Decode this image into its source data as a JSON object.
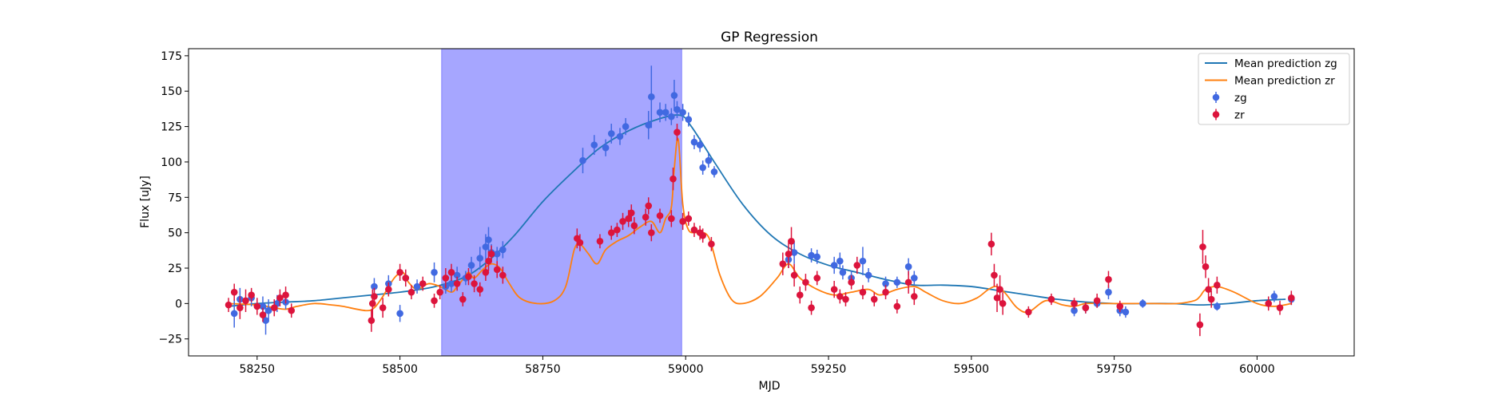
{
  "chart_data": {
    "type": "scatter",
    "title": "GP Regression",
    "xlabel": "MJD",
    "ylabel": "Flux [uJy]",
    "xlim": [
      58130,
      60170
    ],
    "ylim": [
      -37,
      180
    ],
    "xticks": [
      58250,
      58500,
      58750,
      59000,
      59250,
      59500,
      59750,
      60000
    ],
    "yticks": [
      -25,
      0,
      25,
      50,
      75,
      100,
      125,
      150,
      175
    ],
    "grid": false,
    "legend_position": "top-right",
    "shaded_region": {
      "x_start": 58573,
      "x_end": 58993,
      "color": "#a6a6ff"
    },
    "colors": {
      "zg_line": "#1f77b4",
      "zr_line": "#ff7f0e",
      "zg_points": "#4169e1",
      "zr_points": "#dc143c"
    },
    "lines": [
      {
        "name": "Mean prediction zg",
        "x": [
          58200,
          58250,
          58300,
          58350,
          58400,
          58450,
          58500,
          58550,
          58580,
          58620,
          58660,
          58700,
          58750,
          58800,
          58850,
          58900,
          58950,
          58990,
          59010,
          59050,
          59100,
          59150,
          59200,
          59250,
          59300,
          59350,
          59400,
          59450,
          59500,
          59550,
          59600,
          59650,
          59700,
          59750,
          59800,
          59850,
          59900,
          59950,
          60000,
          60050
        ],
        "y": [
          -2,
          0,
          1,
          2,
          4,
          6,
          8,
          11,
          14,
          20,
          32,
          48,
          72,
          92,
          110,
          122,
          130,
          133,
          125,
          100,
          70,
          48,
          35,
          27,
          22,
          17,
          13,
          13,
          12,
          9,
          6,
          3,
          1,
          0,
          0,
          0,
          -1,
          0,
          2,
          3
        ]
      },
      {
        "name": "Mean prediction zr",
        "x": [
          58200,
          58250,
          58280,
          58300,
          58320,
          58350,
          58380,
          58400,
          58440,
          58455,
          58470,
          58490,
          58505,
          58515,
          58530,
          58550,
          58570,
          58590,
          58600,
          58610,
          58620,
          58630,
          58645,
          58660,
          58675,
          58690,
          58710,
          58740,
          58770,
          58790,
          58805,
          58815,
          58830,
          58845,
          58860,
          58880,
          58900,
          58920,
          58940,
          58955,
          58965,
          58975,
          58980,
          58987,
          58995,
          59005,
          59020,
          59040,
          59060,
          59080,
          59100,
          59130,
          59160,
          59180,
          59200,
          59230,
          59260,
          59290,
          59320,
          59340,
          59370,
          59400,
          59420,
          59450,
          59480,
          59510,
          59530,
          59545,
          59560,
          59580,
          59600,
          59630,
          59660,
          59680,
          59700,
          59730,
          59760,
          59790,
          59820,
          59860,
          59890,
          59900,
          59910,
          59930,
          59960,
          60000,
          60030,
          60060
        ],
        "y": [
          0,
          -1,
          -3,
          -4,
          -2,
          0,
          -1,
          -2,
          -5,
          -3,
          5,
          18,
          22,
          15,
          10,
          14,
          12,
          8,
          12,
          17,
          22,
          18,
          24,
          28,
          25,
          15,
          4,
          0,
          2,
          12,
          38,
          42,
          35,
          28,
          38,
          44,
          48,
          54,
          58,
          50,
          60,
          68,
          95,
          116,
          70,
          52,
          50,
          47,
          20,
          3,
          0,
          5,
          18,
          28,
          18,
          10,
          6,
          8,
          10,
          6,
          10,
          12,
          8,
          2,
          0,
          4,
          10,
          12,
          7,
          -3,
          -6,
          2,
          -1,
          -2,
          0,
          0,
          0,
          0,
          0,
          0,
          2,
          5,
          10,
          12,
          8,
          0,
          -2,
          0
        ]
      }
    ],
    "series": [
      {
        "name": "zg",
        "points": [
          [
            58210,
            -7,
            10
          ],
          [
            58220,
            3,
            8
          ],
          [
            58240,
            4,
            6
          ],
          [
            58260,
            -2,
            7
          ],
          [
            58265,
            -12,
            10
          ],
          [
            58270,
            -5,
            8
          ],
          [
            58285,
            0,
            6
          ],
          [
            58300,
            1,
            5
          ],
          [
            58455,
            12,
            6
          ],
          [
            58480,
            14,
            6
          ],
          [
            58500,
            -7,
            6
          ],
          [
            58510,
            18,
            6
          ],
          [
            58530,
            12,
            5
          ],
          [
            58560,
            22,
            7
          ],
          [
            58580,
            12,
            5
          ],
          [
            58590,
            14,
            6
          ],
          [
            58600,
            20,
            6
          ],
          [
            58615,
            18,
            5
          ],
          [
            58625,
            27,
            6
          ],
          [
            58640,
            32,
            8
          ],
          [
            58650,
            40,
            9
          ],
          [
            58655,
            45,
            9
          ],
          [
            58660,
            36,
            6
          ],
          [
            58670,
            35,
            5
          ],
          [
            58680,
            38,
            6
          ],
          [
            58820,
            101,
            9
          ],
          [
            58840,
            112,
            7
          ],
          [
            58860,
            110,
            6
          ],
          [
            58870,
            120,
            7
          ],
          [
            58885,
            118,
            6
          ],
          [
            58895,
            125,
            6
          ],
          [
            58935,
            126,
            10
          ],
          [
            58940,
            146,
            22
          ],
          [
            58955,
            135,
            7
          ],
          [
            58965,
            135,
            6
          ],
          [
            58975,
            132,
            6
          ],
          [
            58980,
            147,
            11
          ],
          [
            58985,
            137,
            6
          ],
          [
            58995,
            135,
            6
          ],
          [
            59005,
            130,
            5
          ],
          [
            59015,
            114,
            5
          ],
          [
            59025,
            112,
            5
          ],
          [
            59030,
            96,
            5
          ],
          [
            59040,
            101,
            5
          ],
          [
            59050,
            93,
            4
          ],
          [
            59180,
            31,
            6
          ],
          [
            59190,
            36,
            8
          ],
          [
            59220,
            34,
            5
          ],
          [
            59230,
            33,
            5
          ],
          [
            59260,
            27,
            6
          ],
          [
            59270,
            30,
            6
          ],
          [
            59275,
            22,
            5
          ],
          [
            59290,
            18,
            5
          ],
          [
            59310,
            30,
            10
          ],
          [
            59320,
            20,
            5
          ],
          [
            59350,
            14,
            5
          ],
          [
            59370,
            15,
            4
          ],
          [
            59390,
            26,
            6
          ],
          [
            59400,
            18,
            5
          ],
          [
            59680,
            -5,
            4
          ],
          [
            59700,
            -3,
            4
          ],
          [
            59720,
            0,
            3
          ],
          [
            59740,
            8,
            5
          ],
          [
            59760,
            -5,
            4
          ],
          [
            59770,
            -6,
            4
          ],
          [
            59800,
            0,
            3
          ],
          [
            59930,
            -2,
            3
          ],
          [
            60030,
            5,
            4
          ],
          [
            60060,
            3,
            4
          ]
        ]
      },
      {
        "name": "zr",
        "points": [
          [
            58200,
            -1,
            5
          ],
          [
            58210,
            8,
            6
          ],
          [
            58220,
            -3,
            8
          ],
          [
            58230,
            2,
            8
          ],
          [
            58240,
            6,
            5
          ],
          [
            58250,
            -2,
            6
          ],
          [
            58260,
            -8,
            5
          ],
          [
            58280,
            -3,
            6
          ],
          [
            58290,
            4,
            6
          ],
          [
            58300,
            6,
            6
          ],
          [
            58310,
            -5,
            5
          ],
          [
            58450,
            -12,
            8
          ],
          [
            58452,
            0,
            10
          ],
          [
            58455,
            5,
            6
          ],
          [
            58470,
            -3,
            7
          ],
          [
            58480,
            10,
            5
          ],
          [
            58500,
            22,
            6
          ],
          [
            58510,
            18,
            6
          ],
          [
            58520,
            8,
            5
          ],
          [
            58540,
            14,
            5
          ],
          [
            58560,
            2,
            5
          ],
          [
            58570,
            8,
            5
          ],
          [
            58580,
            18,
            7
          ],
          [
            58590,
            22,
            6
          ],
          [
            58600,
            14,
            5
          ],
          [
            58610,
            3,
            5
          ],
          [
            58620,
            19,
            6
          ],
          [
            58630,
            14,
            6
          ],
          [
            58640,
            10,
            5
          ],
          [
            58650,
            22,
            6
          ],
          [
            58655,
            30,
            7
          ],
          [
            58660,
            35,
            6
          ],
          [
            58670,
            24,
            6
          ],
          [
            58680,
            20,
            6
          ],
          [
            58810,
            46,
            7
          ],
          [
            58815,
            43,
            6
          ],
          [
            58850,
            44,
            5
          ],
          [
            58870,
            50,
            5
          ],
          [
            58880,
            52,
            5
          ],
          [
            58890,
            58,
            6
          ],
          [
            58900,
            60,
            6
          ],
          [
            58905,
            64,
            6
          ],
          [
            58910,
            55,
            6
          ],
          [
            58930,
            61,
            6
          ],
          [
            58935,
            69,
            6
          ],
          [
            58940,
            50,
            6
          ],
          [
            58955,
            62,
            5
          ],
          [
            58975,
            60,
            6
          ],
          [
            58978,
            88,
            8
          ],
          [
            58985,
            121,
            6
          ],
          [
            58995,
            58,
            6
          ],
          [
            59005,
            60,
            5
          ],
          [
            59015,
            52,
            5
          ],
          [
            59025,
            50,
            5
          ],
          [
            59030,
            48,
            5
          ],
          [
            59045,
            42,
            5
          ],
          [
            59170,
            28,
            8
          ],
          [
            59180,
            35,
            10
          ],
          [
            59185,
            44,
            10
          ],
          [
            59190,
            20,
            8
          ],
          [
            59200,
            6,
            6
          ],
          [
            59210,
            15,
            6
          ],
          [
            59220,
            -3,
            5
          ],
          [
            59230,
            18,
            5
          ],
          [
            59260,
            10,
            6
          ],
          [
            59270,
            5,
            5
          ],
          [
            59280,
            3,
            5
          ],
          [
            59290,
            15,
            5
          ],
          [
            59300,
            27,
            6
          ],
          [
            59310,
            8,
            5
          ],
          [
            59330,
            3,
            5
          ],
          [
            59350,
            8,
            5
          ],
          [
            59370,
            -2,
            5
          ],
          [
            59390,
            15,
            8
          ],
          [
            59400,
            5,
            6
          ],
          [
            59535,
            42,
            8
          ],
          [
            59540,
            20,
            8
          ],
          [
            59545,
            4,
            10
          ],
          [
            59550,
            10,
            10
          ],
          [
            59555,
            0,
            8
          ],
          [
            59600,
            -6,
            4
          ],
          [
            59640,
            3,
            4
          ],
          [
            59680,
            0,
            4
          ],
          [
            59700,
            -3,
            4
          ],
          [
            59720,
            2,
            5
          ],
          [
            59740,
            17,
            6
          ],
          [
            59760,
            -2,
            4
          ],
          [
            59900,
            -15,
            8
          ],
          [
            59905,
            40,
            12
          ],
          [
            59910,
            26,
            8
          ],
          [
            59915,
            10,
            8
          ],
          [
            59920,
            3,
            6
          ],
          [
            59930,
            13,
            6
          ],
          [
            60020,
            0,
            5
          ],
          [
            60040,
            -3,
            5
          ],
          [
            60060,
            4,
            5
          ]
        ]
      }
    ]
  }
}
